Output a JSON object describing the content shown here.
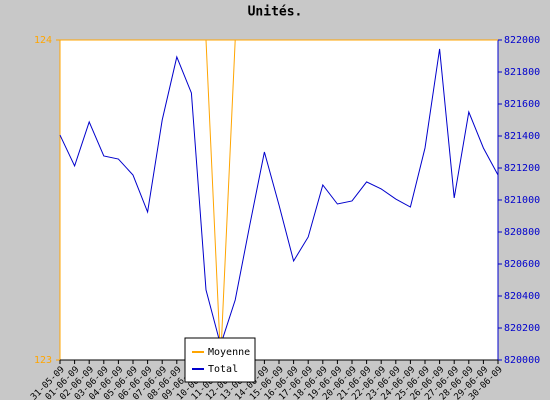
{
  "chart_data": {
    "type": "line",
    "title": "Unités.",
    "categories": [
      "31-05-09",
      "01-06-09",
      "02-06-09",
      "03-06-09",
      "04-06-09",
      "05-06-09",
      "06-06-09",
      "07-06-09",
      "08-06-09",
      "09-06-09",
      "10-06-09",
      "11-06-09",
      "12-06-09",
      "13-06-09",
      "14-06-09",
      "15-06-09",
      "16-06-09",
      "17-06-09",
      "18-06-09",
      "19-06-09",
      "20-06-09",
      "21-06-09",
      "22-06-09",
      "23-06-09",
      "24-06-09",
      "25-06-09",
      "26-06-09",
      "27-06-09",
      "28-06-09",
      "29-06-09",
      "30-06-09"
    ],
    "series": [
      {
        "name": "Moyenne",
        "color": "#ffa500",
        "values": [
          124,
          124,
          124,
          124,
          124,
          124,
          124,
          124,
          124,
          124,
          124,
          123,
          124,
          124,
          124,
          124,
          124,
          124,
          124,
          124,
          124,
          124,
          124,
          124,
          124,
          124,
          124,
          124,
          124,
          124,
          124
        ]
      },
      {
        "name": "Total",
        "color": "#0000cc",
        "axis": "y2",
        "values": [
          821406,
          821213,
          821488,
          821275,
          821256,
          821156,
          820925,
          821500,
          821894,
          821669,
          820438,
          820094,
          820375,
          820844,
          821300,
          820969,
          820619,
          820769,
          821094,
          820975,
          820994,
          821113,
          821069,
          821006,
          820956,
          821325,
          821944,
          821013,
          821550,
          821325,
          821156
        ]
      }
    ],
    "ylim": [
      123,
      124
    ],
    "yticks": [
      123,
      124
    ],
    "y2lim": [
      820000,
      822000
    ],
    "y2ticks": [
      820000,
      820200,
      820400,
      820600,
      820800,
      821000,
      821200,
      821400,
      821600,
      821800,
      822000
    ],
    "legend": "bottom"
  }
}
